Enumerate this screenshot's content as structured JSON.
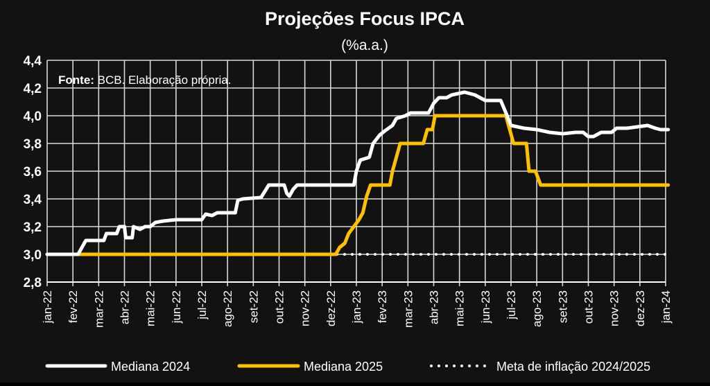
{
  "chart_data": {
    "type": "line",
    "title": "Projeções Focus IPCA",
    "subtitle": "(%a.a.)",
    "source_label": "Fonte:",
    "source_text": " BCB. Elaboração própria.",
    "ylim": [
      2.8,
      4.4
    ],
    "yticks": [
      "2,8",
      "3,0",
      "3,2",
      "3,4",
      "3,6",
      "3,8",
      "4,0",
      "4,2",
      "4,4"
    ],
    "ytick_values": [
      2.8,
      3.0,
      3.2,
      3.4,
      3.6,
      3.8,
      4.0,
      4.2,
      4.4
    ],
    "xlim": [
      0,
      24
    ],
    "xticks": [
      "jan-22",
      "fev-22",
      "mar-22",
      "abr-22",
      "mai-22",
      "jun-22",
      "jul-22",
      "ago-22",
      "set-22",
      "out-22",
      "nov-22",
      "dez-22",
      "jan-23",
      "fev-23",
      "mar-23",
      "abr-23",
      "mai-23",
      "jun-23",
      "jul-23",
      "ago-23",
      "set-23",
      "out-23",
      "nov-23",
      "dez-23",
      "jan-24"
    ],
    "grid": true,
    "legend_position": "bottom",
    "series": [
      {
        "name": "Mediana 2024",
        "color": "#ffffff",
        "style": "solid",
        "points": [
          [
            0,
            3.0
          ],
          [
            1.2,
            3.0
          ],
          [
            1.35,
            3.05
          ],
          [
            1.5,
            3.1
          ],
          [
            2.2,
            3.1
          ],
          [
            2.3,
            3.15
          ],
          [
            2.7,
            3.15
          ],
          [
            2.8,
            3.2
          ],
          [
            3.0,
            3.2
          ],
          [
            3.05,
            3.12
          ],
          [
            3.3,
            3.12
          ],
          [
            3.35,
            3.2
          ],
          [
            3.6,
            3.18
          ],
          [
            3.8,
            3.2
          ],
          [
            4.0,
            3.2
          ],
          [
            4.2,
            3.23
          ],
          [
            4.5,
            3.24
          ],
          [
            5.0,
            3.25
          ],
          [
            6.0,
            3.25
          ],
          [
            6.15,
            3.29
          ],
          [
            6.4,
            3.28
          ],
          [
            6.6,
            3.3
          ],
          [
            7.3,
            3.3
          ],
          [
            7.4,
            3.39
          ],
          [
            7.6,
            3.4
          ],
          [
            8.3,
            3.41
          ],
          [
            8.6,
            3.5
          ],
          [
            9.2,
            3.5
          ],
          [
            9.3,
            3.44
          ],
          [
            9.4,
            3.42
          ],
          [
            9.55,
            3.47
          ],
          [
            9.7,
            3.5
          ],
          [
            11.9,
            3.5
          ],
          [
            12.0,
            3.6
          ],
          [
            12.15,
            3.68
          ],
          [
            12.5,
            3.7
          ],
          [
            12.65,
            3.8
          ],
          [
            12.9,
            3.86
          ],
          [
            13.1,
            3.89
          ],
          [
            13.4,
            3.93
          ],
          [
            13.55,
            3.98
          ],
          [
            13.9,
            4.0
          ],
          [
            14.1,
            4.02
          ],
          [
            14.8,
            4.02
          ],
          [
            15.0,
            4.09
          ],
          [
            15.2,
            4.13
          ],
          [
            15.5,
            4.13
          ],
          [
            15.7,
            4.15
          ],
          [
            16.2,
            4.17
          ],
          [
            16.6,
            4.15
          ],
          [
            17.0,
            4.11
          ],
          [
            17.6,
            4.11
          ],
          [
            17.85,
            4.0
          ],
          [
            18.0,
            3.93
          ],
          [
            18.5,
            3.91
          ],
          [
            19.0,
            3.9
          ],
          [
            19.5,
            3.88
          ],
          [
            20.0,
            3.87
          ],
          [
            20.5,
            3.88
          ],
          [
            20.8,
            3.88
          ],
          [
            21.0,
            3.85
          ],
          [
            21.2,
            3.85
          ],
          [
            21.5,
            3.88
          ],
          [
            21.9,
            3.88
          ],
          [
            22.1,
            3.91
          ],
          [
            22.5,
            3.91
          ],
          [
            22.9,
            3.92
          ],
          [
            23.3,
            3.93
          ],
          [
            23.6,
            3.91
          ],
          [
            23.8,
            3.9
          ],
          [
            24.1,
            3.9
          ]
        ]
      },
      {
        "name": "Mediana 2025",
        "color": "#ffc000",
        "style": "solid",
        "points": [
          [
            0,
            3.0
          ],
          [
            11.2,
            3.0
          ],
          [
            11.35,
            3.05
          ],
          [
            11.55,
            3.08
          ],
          [
            11.7,
            3.15
          ],
          [
            11.9,
            3.2
          ],
          [
            12.1,
            3.25
          ],
          [
            12.25,
            3.3
          ],
          [
            12.4,
            3.42
          ],
          [
            12.55,
            3.5
          ],
          [
            13.3,
            3.5
          ],
          [
            13.4,
            3.6
          ],
          [
            13.55,
            3.7
          ],
          [
            13.7,
            3.8
          ],
          [
            14.6,
            3.8
          ],
          [
            14.75,
            3.9
          ],
          [
            14.95,
            3.9
          ],
          [
            15.05,
            4.0
          ],
          [
            17.8,
            4.0
          ],
          [
            17.95,
            3.9
          ],
          [
            18.1,
            3.8
          ],
          [
            18.6,
            3.8
          ],
          [
            18.7,
            3.6
          ],
          [
            18.95,
            3.6
          ],
          [
            19.15,
            3.5
          ],
          [
            24.1,
            3.5
          ]
        ]
      },
      {
        "name": "Meta de inflação 2024/2025",
        "color": "#ffffff",
        "style": "dotted",
        "points": [
          [
            0,
            3.0
          ],
          [
            24.1,
            3.0
          ]
        ]
      }
    ]
  }
}
